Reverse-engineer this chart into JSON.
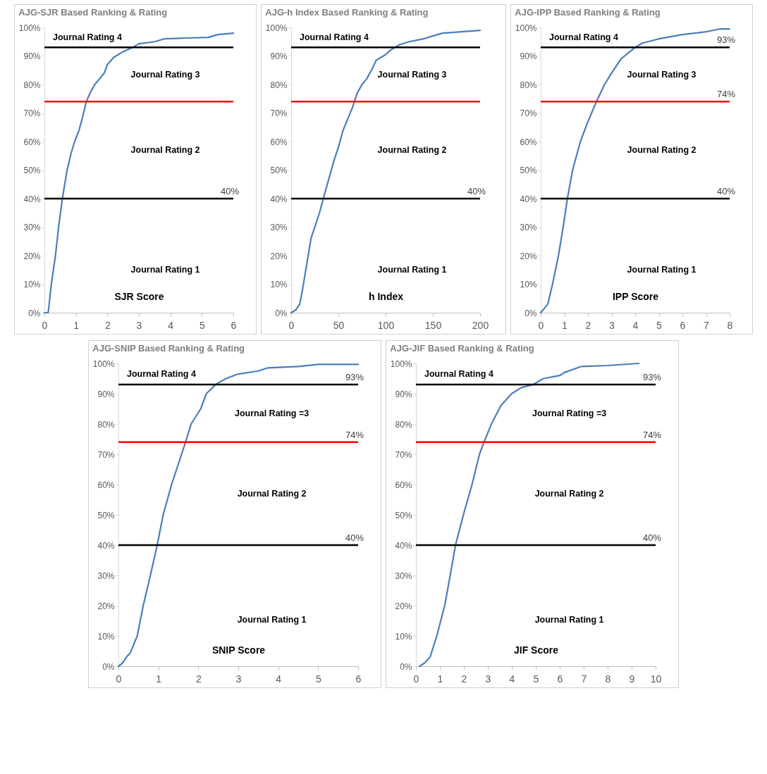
{
  "chart_data": [
    {
      "type": "line",
      "title": "AJG-SJR Based Ranking & Rating",
      "xlabel": "SJR Score",
      "xlim": [
        0,
        6
      ],
      "xticks": [
        0,
        1,
        2,
        3,
        4,
        5,
        6
      ],
      "ylim": [
        0,
        100
      ],
      "yticks": [
        {
          "value": 0,
          "label": "0%"
        },
        {
          "value": 10,
          "label": "10%"
        },
        {
          "value": 20,
          "label": "20%"
        },
        {
          "value": 30,
          "label": "30%"
        },
        {
          "value": 40,
          "label": "40%"
        },
        {
          "value": 50,
          "label": "50%"
        },
        {
          "value": 60,
          "label": "60%"
        },
        {
          "value": 70,
          "label": "70%"
        },
        {
          "value": 80,
          "label": "80%"
        },
        {
          "value": 90,
          "label": "90%"
        },
        {
          "value": 100,
          "label": "100%"
        }
      ],
      "series": [
        {
          "color": "#4a7ebb",
          "x": [
            0,
            0.12,
            0.22,
            0.35,
            0.45,
            0.57,
            0.72,
            0.85,
            0.96,
            1.1,
            1.2,
            1.33,
            1.45,
            1.6,
            1.75,
            1.9,
            2.0,
            2.2,
            2.5,
            2.8,
            3.0,
            3.5,
            3.8,
            4.5,
            5.2,
            5.5,
            6
          ],
          "values": [
            0,
            0,
            10,
            20,
            30,
            40,
            50,
            56,
            60,
            64,
            68,
            74,
            77,
            80,
            82,
            84,
            87,
            89.5,
            91.5,
            93,
            94.3,
            95,
            96,
            96.3,
            96.5,
            97.5,
            98
          ]
        }
      ],
      "ref_lines": [
        {
          "axis": "y",
          "value": 40,
          "label": "40%",
          "color": "#000000"
        },
        {
          "axis": "y",
          "value": 74,
          "color": "#ff0000"
        },
        {
          "axis": "y",
          "value": 93,
          "color": "#000000"
        }
      ],
      "annotations": [
        "Journal Rating 1",
        "Journal Rating 2",
        "Journal Rating 3",
        "Journal Rating 4"
      ]
    },
    {
      "type": "line",
      "title": "AJG-h Index Based Ranking & Rating",
      "xlabel": "h Index",
      "xlim": [
        0,
        200
      ],
      "xticks": [
        0,
        50,
        100,
        150,
        200
      ],
      "ylim": [
        0,
        100
      ],
      "yticks": [
        {
          "value": 0,
          "label": "0%"
        },
        {
          "value": 10,
          "label": "10%"
        },
        {
          "value": 20,
          "label": "20%"
        },
        {
          "value": 30,
          "label": "30%"
        },
        {
          "value": 40,
          "label": "40%"
        },
        {
          "value": 50,
          "label": "50%"
        },
        {
          "value": 60,
          "label": "60%"
        },
        {
          "value": 70,
          "label": "70%"
        },
        {
          "value": 80,
          "label": "80%"
        },
        {
          "value": 90,
          "label": "90%"
        },
        {
          "value": 100,
          "label": "100%"
        }
      ],
      "series": [
        {
          "color": "#4a7ebb",
          "x": [
            0,
            5,
            9,
            12,
            15,
            18,
            21,
            25,
            30,
            34,
            40,
            45,
            50,
            55,
            60,
            65,
            67,
            70,
            75,
            80,
            85,
            90,
            95,
            100,
            105,
            110,
            115,
            125,
            140,
            150,
            160,
            180,
            200
          ],
          "values": [
            0,
            1,
            3,
            8,
            14,
            20,
            26,
            30,
            35,
            40,
            47,
            53,
            58,
            64,
            68,
            72,
            74,
            77,
            80,
            82,
            85,
            88.5,
            89.5,
            90.5,
            92,
            93,
            94,
            95,
            96,
            97,
            98,
            98.5,
            99
          ]
        }
      ],
      "ref_lines": [
        {
          "axis": "y",
          "value": 40,
          "label": "40%",
          "color": "#000000"
        },
        {
          "axis": "y",
          "value": 74,
          "color": "#ff0000"
        },
        {
          "axis": "y",
          "value": 93,
          "color": "#000000"
        }
      ],
      "annotations": [
        "Journal Rating 1",
        "Journal Rating 2",
        "Journal Rating 3",
        "Journal Rating 4"
      ]
    },
    {
      "type": "line",
      "title": "AJG-IPP Based Ranking & Rating",
      "xlabel": "IPP Score",
      "xlim": [
        0,
        8
      ],
      "xticks": [
        0,
        1,
        2,
        3,
        4,
        5,
        6,
        7,
        8
      ],
      "ylim": [
        0,
        100
      ],
      "yticks": [
        {
          "value": 0,
          "label": "0%"
        },
        {
          "value": 10,
          "label": "10%"
        },
        {
          "value": 20,
          "label": "20%"
        },
        {
          "value": 30,
          "label": "30%"
        },
        {
          "value": 40,
          "label": "40%"
        },
        {
          "value": 50,
          "label": "50%"
        },
        {
          "value": 60,
          "label": "60%"
        },
        {
          "value": 70,
          "label": "70%"
        },
        {
          "value": 80,
          "label": "80%"
        },
        {
          "value": 90,
          "label": "90%"
        },
        {
          "value": 100,
          "label": "100%"
        }
      ],
      "series": [
        {
          "color": "#4a7ebb",
          "x": [
            0,
            0.3,
            0.5,
            0.75,
            0.95,
            1.13,
            1.35,
            1.68,
            2,
            2.36,
            2.7,
            3,
            3.4,
            3.7,
            4,
            4.3,
            5,
            6,
            7,
            7.6,
            8
          ],
          "values": [
            0,
            3,
            10,
            20,
            30,
            40,
            50,
            60,
            67,
            74,
            80,
            84,
            89,
            91,
            93,
            94.5,
            96,
            97.5,
            98.5,
            99.5,
            99.5
          ]
        }
      ],
      "ref_lines": [
        {
          "axis": "y",
          "value": 40,
          "label": "40%",
          "color": "#000000"
        },
        {
          "axis": "y",
          "value": 74,
          "label": "74%",
          "color": "#ff0000"
        },
        {
          "axis": "y",
          "value": 93,
          "label": "93%",
          "color": "#000000"
        }
      ],
      "annotations": [
        "Journal Rating 1",
        "Journal Rating 2",
        "Journal Rating 3",
        "Journal Rating 4"
      ]
    },
    {
      "type": "line",
      "title": "AJG-SNIP Based Ranking & Rating",
      "xlabel": "SNIP Score",
      "xlim": [
        0,
        6
      ],
      "xticks": [
        0,
        1,
        2,
        3,
        4,
        5,
        6
      ],
      "ylim": [
        0,
        100
      ],
      "yticks": [
        {
          "value": 0,
          "label": "0%"
        },
        {
          "value": 10,
          "label": "10%"
        },
        {
          "value": 20,
          "label": "20%"
        },
        {
          "value": 30,
          "label": "30%"
        },
        {
          "value": 40,
          "label": "40%"
        },
        {
          "value": 50,
          "label": "50%"
        },
        {
          "value": 60,
          "label": "60%"
        },
        {
          "value": 70,
          "label": "70%"
        },
        {
          "value": 80,
          "label": "80%"
        },
        {
          "value": 90,
          "label": "90%"
        },
        {
          "value": 100,
          "label": "100%"
        }
      ],
      "series": [
        {
          "color": "#4a7ebb",
          "x": [
            0,
            0.1,
            0.2,
            0.3,
            0.47,
            0.62,
            0.8,
            0.97,
            1.12,
            1.33,
            1.58,
            1.68,
            1.82,
            2.06,
            2.2,
            2.43,
            2.69,
            3.0,
            3.5,
            3.73,
            4.5,
            5,
            6
          ],
          "values": [
            0,
            1,
            3,
            4.5,
            10,
            20,
            30,
            40,
            50,
            60,
            70,
            74,
            80,
            85,
            90,
            93,
            95,
            96.5,
            97.5,
            98.5,
            99,
            99.7,
            99.7
          ]
        }
      ],
      "ref_lines": [
        {
          "axis": "y",
          "value": 40,
          "label": "40%",
          "color": "#000000"
        },
        {
          "axis": "y",
          "value": 74,
          "label": "74%",
          "color": "#ff0000"
        },
        {
          "axis": "y",
          "value": 93,
          "label": "93%",
          "color": "#000000"
        }
      ],
      "annotations": [
        "Journal Rating 1",
        "Journal Rating 2",
        "Journal Rating =3",
        "Journal Rating 4"
      ]
    },
    {
      "type": "line",
      "title": "AJG-JIF Based Ranking & Rating",
      "xlabel": "JIF Score",
      "xlim": [
        0,
        10
      ],
      "xticks": [
        0,
        1,
        2,
        3,
        4,
        5,
        6,
        7,
        8,
        9,
        10
      ],
      "ylim": [
        0,
        100
      ],
      "yticks": [
        {
          "value": 0,
          "label": "0%"
        },
        {
          "value": 10,
          "label": "10%"
        },
        {
          "value": 20,
          "label": "20%"
        },
        {
          "value": 30,
          "label": "30%"
        },
        {
          "value": 40,
          "label": "40%"
        },
        {
          "value": 50,
          "label": "50%"
        },
        {
          "value": 60,
          "label": "60%"
        },
        {
          "value": 70,
          "label": "70%"
        },
        {
          "value": 80,
          "label": "80%"
        },
        {
          "value": 90,
          "label": "90%"
        },
        {
          "value": 100,
          "label": "100%"
        }
      ],
      "series": [
        {
          "color": "#4a7ebb",
          "x": [
            0.15,
            0.35,
            0.59,
            0.87,
            1.2,
            1.43,
            1.65,
            1.98,
            2.34,
            2.65,
            2.84,
            3.15,
            3.54,
            3.99,
            4.4,
            4.88,
            5.32,
            6.0,
            6.2,
            6.9,
            8,
            9.3
          ],
          "values": [
            0,
            1,
            3,
            10,
            20,
            30,
            40,
            50,
            60,
            70,
            74,
            80,
            86,
            90,
            92,
            93,
            95,
            96,
            97,
            99,
            99.3,
            100
          ]
        }
      ],
      "ref_lines": [
        {
          "axis": "y",
          "value": 40,
          "label": "40%",
          "color": "#000000"
        },
        {
          "axis": "y",
          "value": 74,
          "label": "74%",
          "color": "#ff0000"
        },
        {
          "axis": "y",
          "value": 93,
          "label": "93%",
          "color": "#000000"
        }
      ],
      "annotations": [
        "Journal Rating 1",
        "Journal Rating 2",
        "Journal Rating =3",
        "Journal Rating 4"
      ]
    }
  ]
}
